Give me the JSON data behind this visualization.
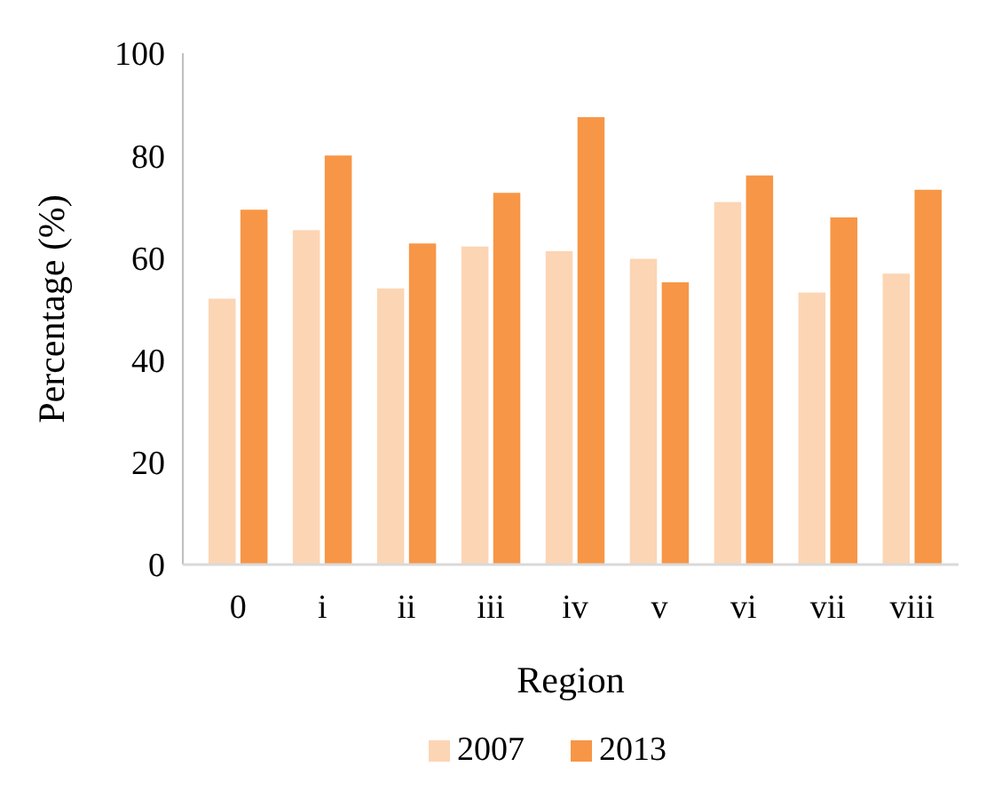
{
  "chart_data": {
    "type": "bar",
    "xlabel": "Region",
    "ylabel": "Percentage (%)",
    "categories": [
      "0",
      "i",
      "ii",
      "iii",
      "iv",
      "v",
      "vi",
      "vii",
      "viii"
    ],
    "series": [
      {
        "name": "2007",
        "color": "#fcd5b4",
        "values": [
          52,
          65.4,
          54,
          62.2,
          61.3,
          59.8,
          70.9,
          53.2,
          56.9
        ]
      },
      {
        "name": "2013",
        "color": "#f79646",
        "values": [
          69.4,
          80,
          62.8,
          72.7,
          87.5,
          55.2,
          76.1,
          67.9,
          73.3
        ]
      }
    ],
    "ylim": [
      0,
      100
    ],
    "yticks": [
      0,
      20,
      40,
      60,
      80,
      100
    ],
    "legend": "bottom"
  }
}
